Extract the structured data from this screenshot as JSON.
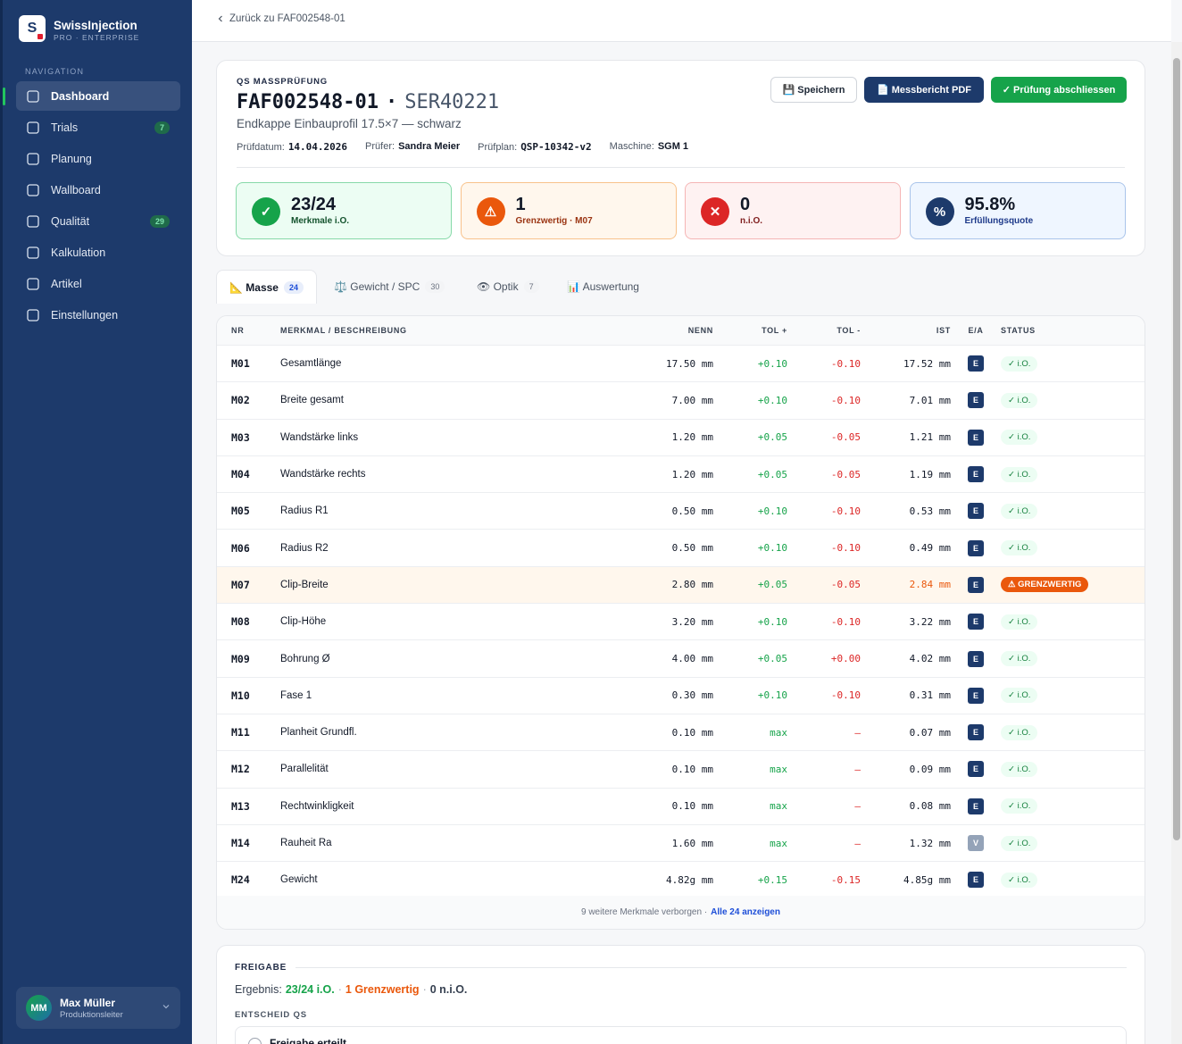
{
  "sidebar": {
    "logo": "S",
    "brand": "SwissInjection",
    "edition": "PRO · ENTERPRISE",
    "nav_label": "NAVIGATION",
    "nav": [
      {
        "label": "Dashboard"
      },
      {
        "label": "Trials",
        "badge": 7
      },
      {
        "label": "Planung"
      },
      {
        "label": "Wallboard"
      },
      {
        "label": "Qualität",
        "badge": 29
      },
      {
        "label": "Kalkulation"
      },
      {
        "label": "Artikel"
      },
      {
        "label": "Einstellungen"
      }
    ],
    "user": {
      "initials": "MM",
      "name": "Max Müller",
      "role": "Produktionsleiter"
    }
  },
  "back": "Zurück zu FAF002548-01",
  "header": {
    "eyebrow": "QS MASSPRÜFUNG",
    "order": "FAF002548-01",
    "sep": "·",
    "serial": "SER40221",
    "subtitle": "Endkappe Einbauprofil 17.5×7 — schwarz",
    "meta": [
      {
        "label": "Prüfdatum:",
        "value": "14.04.2026"
      },
      {
        "label": "Prüfer:",
        "value": "Sandra Meier"
      },
      {
        "label": "Prüfplan:",
        "value": "QSP-10342-v2"
      },
      {
        "label": "Maschine:",
        "value": "SGM 1"
      }
    ],
    "buttons": [
      "💾 Speichern",
      "📄 Messbericht PDF",
      "✓ Prüfung abschliessen"
    ]
  },
  "kpis": [
    {
      "icon": "✓",
      "value": "23/24",
      "label": "Merkmale i.O."
    },
    {
      "icon": "⚠",
      "value": "1",
      "label": "Grenzwertig · M07"
    },
    {
      "icon": "✕",
      "value": "0",
      "label": "n.i.O."
    },
    {
      "icon": "%",
      "value": "95.8%",
      "label": "Erfüllungsquote"
    }
  ],
  "tabs": [
    {
      "label": "📐 Masse",
      "count": 24
    },
    {
      "label": "⚖️ Gewicht / SPC",
      "count": 30
    },
    {
      "label": "👁 Optik",
      "count": 7
    },
    {
      "label": "📊 Auswertung"
    }
  ],
  "table": {
    "columns": [
      "NR",
      "MERKMAL / BESCHREIBUNG",
      "NENN",
      "TOL +",
      "TOL -",
      "IST",
      "E/A",
      "STATUS"
    ],
    "rows": [
      [
        "M01",
        "Gesamtlänge",
        "17.50 mm",
        "+0.10",
        "-0.10",
        "17.52 mm",
        "E",
        "✓ i.O."
      ],
      [
        "M02",
        "Breite gesamt",
        "7.00 mm",
        "+0.10",
        "-0.10",
        "7.01 mm",
        "E",
        "✓ i.O."
      ],
      [
        "M03",
        "Wandstärke links",
        "1.20 mm",
        "+0.05",
        "-0.05",
        "1.21 mm",
        "E",
        "✓ i.O."
      ],
      [
        "M04",
        "Wandstärke rechts",
        "1.20 mm",
        "+0.05",
        "-0.05",
        "1.19 mm",
        "E",
        "✓ i.O."
      ],
      [
        "M05",
        "Radius R1",
        "0.50 mm",
        "+0.10",
        "-0.10",
        "0.53 mm",
        "E",
        "✓ i.O."
      ],
      [
        "M06",
        "Radius R2",
        "0.50 mm",
        "+0.10",
        "-0.10",
        "0.49 mm",
        "E",
        "✓ i.O."
      ],
      [
        "M07",
        "Clip-Breite",
        "2.80 mm",
        "+0.05",
        "-0.05",
        "2.84 mm",
        "E",
        "⚠ GRENZWERTIG"
      ],
      [
        "M08",
        "Clip-Höhe",
        "3.20 mm",
        "+0.10",
        "-0.10",
        "3.22 mm",
        "E",
        "✓ i.O."
      ],
      [
        "M09",
        "Bohrung Ø",
        "4.00 mm",
        "+0.05",
        "+0.00",
        "4.02 mm",
        "E",
        "✓ i.O."
      ],
      [
        "M10",
        "Fase 1",
        "0.30 mm",
        "+0.10",
        "-0.10",
        "0.31 mm",
        "E",
        "✓ i.O."
      ],
      [
        "M11",
        "Planheit Grundfl.",
        "0.10 mm",
        "max",
        "–",
        "0.07 mm",
        "E",
        "✓ i.O."
      ],
      [
        "M12",
        "Parallelität",
        "0.10 mm",
        "max",
        "–",
        "0.09 mm",
        "E",
        "✓ i.O."
      ],
      [
        "M13",
        "Rechtwinkligkeit",
        "0.10 mm",
        "max",
        "–",
        "0.08 mm",
        "E",
        "✓ i.O."
      ],
      [
        "M14",
        "Rauheit Ra",
        "1.60 mm",
        "max",
        "–",
        "1.32 mm",
        "V",
        "✓ i.O."
      ],
      [
        "M24",
        "Gewicht",
        "4.82g mm",
        "+0.15",
        "-0.15",
        "4.85g mm",
        "E",
        "✓ i.O."
      ]
    ],
    "footer": {
      "text": "9 weitere Merkmale verborgen ·",
      "link": "Alle 24 anzeigen"
    }
  },
  "release": {
    "title": "FREIGABE",
    "result_label": "Ergebnis:",
    "ok": "23/24 i.O.",
    "sep": "·",
    "warn": "1 Grenzwertig",
    "nok": "0 n.i.O.",
    "decision_label": "ENTSCHEID QS",
    "option": "Freigabe erteilt"
  }
}
